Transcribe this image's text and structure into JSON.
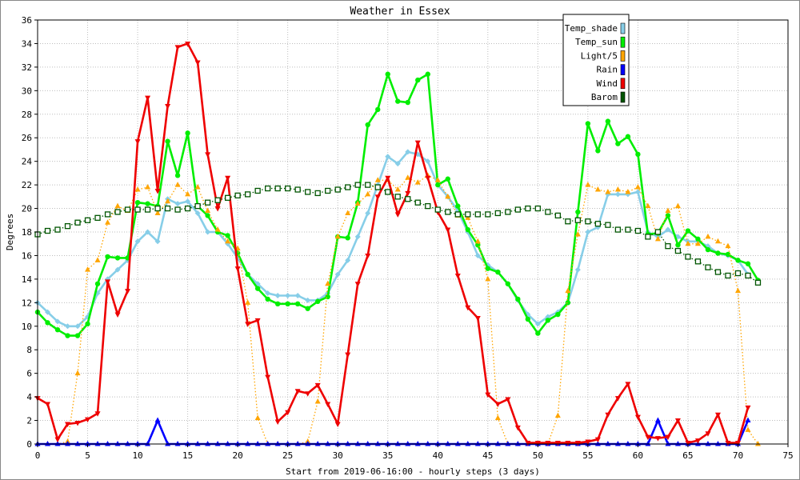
{
  "chart_data": {
    "type": "line",
    "title": "Weather in Essex",
    "xlabel": "Start from 2019-06-16:00 - hourly steps (3 days)",
    "ylabel": "Degrees",
    "xlim": [
      0,
      75
    ],
    "ylim": [
      0,
      36
    ],
    "x_ticks": [
      0,
      5,
      10,
      15,
      20,
      25,
      30,
      35,
      40,
      45,
      50,
      55,
      60,
      65,
      70,
      75
    ],
    "y_ticks": [
      0,
      2,
      4,
      6,
      8,
      10,
      12,
      14,
      16,
      18,
      20,
      22,
      24,
      26,
      28,
      30,
      32,
      34,
      36
    ],
    "grid": true,
    "legend_position": "top-right",
    "series": [
      {
        "name": "Temp_shade",
        "color": "#87cee8",
        "marker": "diamond",
        "line": "solid",
        "values": [
          12.0,
          11.2,
          10.4,
          10.0,
          10.0,
          10.8,
          12.8,
          14.0,
          14.8,
          15.6,
          17.2,
          18.0,
          17.2,
          20.8,
          20.4,
          20.6,
          19.6,
          18.0,
          18.0,
          17.0,
          15.8,
          14.4,
          13.6,
          12.8,
          12.6,
          12.6,
          12.6,
          12.2,
          12.2,
          12.8,
          14.4,
          15.6,
          17.6,
          19.6,
          22.0,
          24.4,
          23.8,
          24.8,
          24.6,
          24.0,
          22.0,
          21.0,
          19.8,
          18.0,
          16.0,
          15.2,
          14.6,
          13.6,
          12.2,
          11.0,
          10.2,
          10.8,
          11.2,
          12.0,
          14.8,
          18.0,
          18.4,
          21.2,
          21.2,
          21.2,
          21.4,
          18.0,
          17.6,
          18.2,
          17.6,
          17.2,
          17.2,
          16.8,
          16.2,
          16.0,
          15.6,
          14.4
        ]
      },
      {
        "name": "Temp_sun",
        "color": "#00ee00",
        "marker": "circle",
        "line": "solid",
        "values": [
          11.2,
          10.3,
          9.7,
          9.2,
          9.2,
          10.2,
          13.6,
          15.9,
          15.8,
          15.8,
          20.5,
          20.4,
          20.2,
          25.7,
          22.8,
          26.4,
          20.2,
          19.4,
          18.0,
          17.7,
          16.2,
          14.4,
          13.2,
          12.3,
          11.9,
          11.9,
          11.9,
          11.5,
          12.1,
          12.5,
          17.6,
          17.5,
          20.5,
          27.1,
          28.4,
          31.4,
          29.1,
          29.0,
          30.9,
          31.4,
          22.0,
          22.5,
          20.2,
          18.2,
          16.9,
          14.9,
          14.6,
          13.6,
          12.3,
          10.6,
          9.4,
          10.5,
          11.0,
          12.0,
          19.7,
          27.2,
          24.9,
          27.4,
          25.5,
          26.1,
          24.6,
          17.8,
          17.9,
          19.4,
          16.9,
          18.1,
          17.4,
          16.5,
          16.2,
          16.1,
          15.6,
          15.3,
          13.9
        ]
      },
      {
        "name": "Light/5",
        "color": "#ffa500",
        "marker": "triangle",
        "line": "dotted",
        "values": [
          0,
          0,
          0,
          0.2,
          6.0,
          14.8,
          15.6,
          18.8,
          20.2,
          19.8,
          21.6,
          21.8,
          19.6,
          20.6,
          22.0,
          21.2,
          21.8,
          19.8,
          18.2,
          17.2,
          16.6,
          12.0,
          2.2,
          0,
          0,
          0,
          0,
          0.2,
          3.6,
          13.6,
          17.6,
          19.6,
          20.4,
          21.2,
          22.4,
          22.4,
          21.6,
          22.6,
          22.2,
          22.8,
          22.4,
          21.0,
          19.4,
          19.2,
          17.2,
          14.0,
          2.2,
          0,
          0,
          0,
          0,
          0,
          2.4,
          13.0,
          17.8,
          22.0,
          21.6,
          21.4,
          21.6,
          21.4,
          21.8,
          20.2,
          17.4,
          19.8,
          20.2,
          17.0,
          17.0,
          17.6,
          17.2,
          16.8,
          13.0,
          1.2,
          0
        ]
      },
      {
        "name": "Rain",
        "color": "#0000ff",
        "marker": "triangle",
        "line": "solid",
        "values": [
          0,
          0,
          0,
          0,
          0,
          0,
          0,
          0,
          0,
          0,
          0,
          0,
          2.0,
          0,
          0,
          0,
          0,
          0,
          0,
          0,
          0,
          0,
          0,
          0,
          0,
          0,
          0,
          0,
          0,
          0,
          0,
          0,
          0,
          0,
          0,
          0,
          0,
          0,
          0,
          0,
          0,
          0,
          0,
          0,
          0,
          0,
          0,
          0,
          0,
          0,
          0,
          0,
          0,
          0,
          0,
          0,
          0,
          0,
          0,
          0,
          0,
          0,
          2.0,
          0,
          0,
          0,
          0,
          0,
          0,
          0,
          0,
          2.0
        ]
      },
      {
        "name": "Wind",
        "color": "#ee0000",
        "marker": "triangle-down",
        "line": "solid",
        "values": [
          3.9,
          3.4,
          0.4,
          1.7,
          1.8,
          2.1,
          2.6,
          13.8,
          11.0,
          13.0,
          25.7,
          29.4,
          21.5,
          28.7,
          33.7,
          34.0,
          32.4,
          24.6,
          20.0,
          22.6,
          14.9,
          10.2,
          10.5,
          5.7,
          1.9,
          2.7,
          4.5,
          4.3,
          5.0,
          3.4,
          1.7,
          7.6,
          13.6,
          16.0,
          21.0,
          22.6,
          19.5,
          21.3,
          25.6,
          22.6,
          19.7,
          18.2,
          14.3,
          11.6,
          10.7,
          4.2,
          3.4,
          3.8,
          1.4,
          0.1,
          0.1,
          0.1,
          0.1,
          0.1,
          0.1,
          0.2,
          0.4,
          2.5,
          3.9,
          5.1,
          2.3,
          0.6,
          0.5,
          0.6,
          2.0,
          0.1,
          0.3,
          0.9,
          2.5,
          0.1,
          0.1,
          3.1
        ]
      },
      {
        "name": "Barom",
        "color": "#005500",
        "marker": "square",
        "line": "dotted",
        "values": [
          17.8,
          18.1,
          18.2,
          18.5,
          18.8,
          19.0,
          19.2,
          19.5,
          19.7,
          19.9,
          19.9,
          19.9,
          20.0,
          20.0,
          19.9,
          20.0,
          20.2,
          20.5,
          20.7,
          20.9,
          21.1,
          21.2,
          21.5,
          21.7,
          21.7,
          21.7,
          21.6,
          21.4,
          21.3,
          21.5,
          21.6,
          21.8,
          22.0,
          22.0,
          21.8,
          21.4,
          21.0,
          20.8,
          20.5,
          20.2,
          19.9,
          19.7,
          19.5,
          19.5,
          19.5,
          19.5,
          19.6,
          19.7,
          19.9,
          20.0,
          20.0,
          19.7,
          19.4,
          18.9,
          19.0,
          18.9,
          18.7,
          18.6,
          18.2,
          18.2,
          18.1,
          17.6,
          18.0,
          16.8,
          16.4,
          15.9,
          15.5,
          15.0,
          14.6,
          14.3,
          14.5,
          14.3,
          13.7
        ]
      }
    ]
  }
}
